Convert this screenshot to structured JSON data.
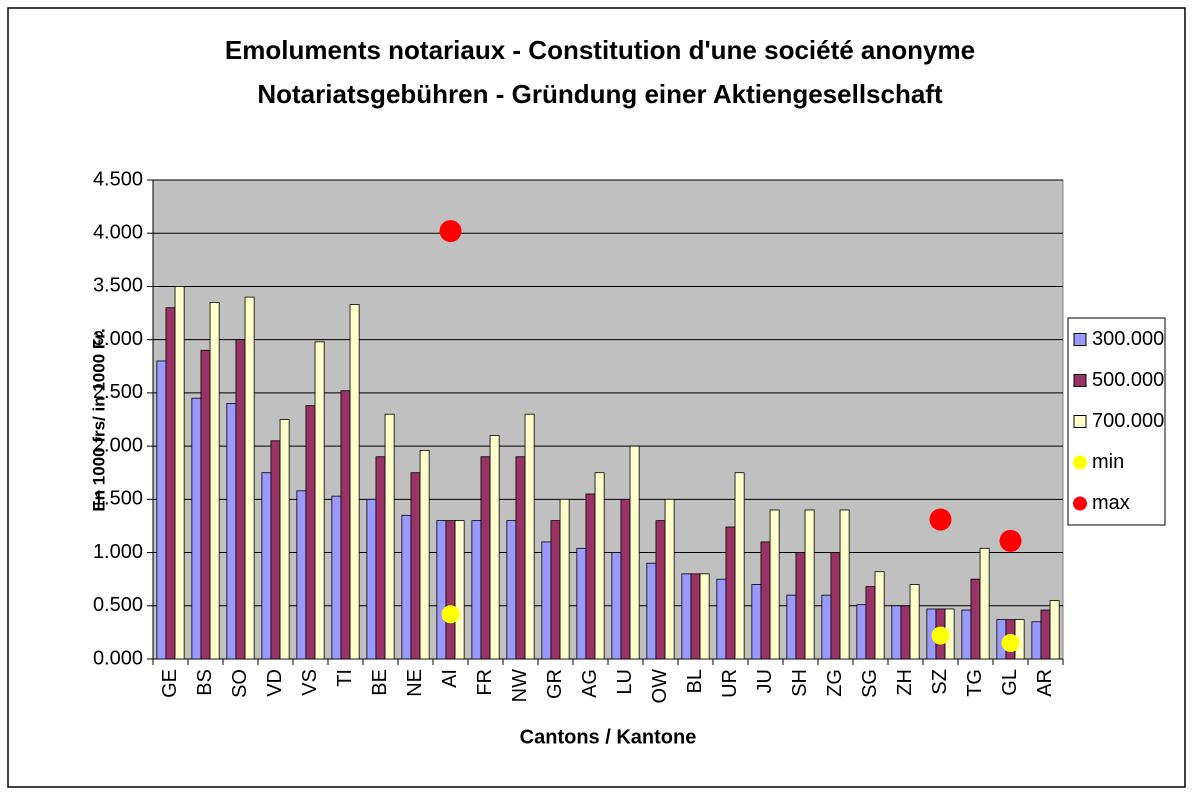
{
  "chart_data": {
    "type": "bar",
    "title": "Emoluments notariaux - Constitution d'une société anonyme",
    "subtitle": "Notariatsgebühren - Gründung einer Aktiengesellschaft",
    "y_label": "En 1000 frs/ in 1000 Fr.",
    "x_label": "Cantons / Kantone",
    "categories": [
      "GE",
      "BS",
      "SO",
      "VD",
      "VS",
      "TI",
      "BE",
      "NE",
      "AI",
      "FR",
      "NW",
      "GR",
      "AG",
      "LU",
      "OW",
      "BL",
      "UR",
      "JU",
      "SH",
      "ZG",
      "SG",
      "ZH",
      "SZ",
      "TG",
      "GL",
      "AR"
    ],
    "series": [
      {
        "name": "300.000",
        "type": "bar",
        "color": "#9999ff",
        "values": [
          2.8,
          2.45,
          2.4,
          1.75,
          1.58,
          1.53,
          1.5,
          1.35,
          1.3,
          1.3,
          1.3,
          1.1,
          1.04,
          1.0,
          0.9,
          0.8,
          0.75,
          0.7,
          0.6,
          0.6,
          0.51,
          0.5,
          0.47,
          0.46,
          0.37,
          0.35
        ]
      },
      {
        "name": "500.000",
        "type": "bar",
        "color": "#993366",
        "values": [
          3.3,
          2.9,
          3.0,
          2.05,
          2.38,
          2.52,
          1.9,
          1.75,
          1.3,
          1.9,
          1.9,
          1.3,
          1.55,
          1.5,
          1.3,
          0.8,
          1.24,
          1.1,
          1.0,
          1.0,
          0.68,
          0.5,
          0.47,
          0.75,
          0.37,
          0.46
        ]
      },
      {
        "name": "700.000",
        "type": "bar",
        "color": "#ffffcc",
        "values": [
          3.5,
          3.35,
          3.4,
          2.25,
          2.98,
          3.33,
          2.3,
          1.96,
          1.3,
          2.1,
          2.3,
          1.5,
          1.75,
          2.0,
          1.5,
          0.8,
          1.75,
          1.4,
          1.4,
          1.4,
          0.82,
          0.7,
          0.47,
          1.04,
          0.37,
          0.55
        ]
      },
      {
        "name": "min",
        "type": "scatter",
        "color": "#ffff00",
        "values": [
          null,
          null,
          null,
          null,
          null,
          null,
          null,
          null,
          0.42,
          null,
          null,
          null,
          null,
          null,
          null,
          null,
          null,
          null,
          null,
          null,
          null,
          null,
          0.22,
          null,
          0.15,
          null
        ]
      },
      {
        "name": "max",
        "type": "scatter",
        "color": "#ff0000",
        "values": [
          null,
          null,
          null,
          null,
          null,
          null,
          null,
          null,
          4.02,
          null,
          null,
          null,
          null,
          null,
          null,
          null,
          null,
          null,
          null,
          null,
          null,
          null,
          1.31,
          null,
          1.11,
          null
        ]
      }
    ],
    "ylim": [
      0,
      4.5
    ],
    "yticks": [
      {
        "value": 0,
        "label": "0.000"
      },
      {
        "value": 0.5,
        "label": "0.500"
      },
      {
        "value": 1,
        "label": "1.000"
      },
      {
        "value": 1.5,
        "label": "1.500"
      },
      {
        "value": 2,
        "label": "2.000"
      },
      {
        "value": 2.5,
        "label": "2.500"
      },
      {
        "value": 3,
        "label": "3.000"
      },
      {
        "value": 3.5,
        "label": "3.500"
      },
      {
        "value": 4,
        "label": "4.000"
      },
      {
        "value": 4.5,
        "label": "4.500"
      }
    ],
    "grid": true,
    "legend": "right"
  }
}
